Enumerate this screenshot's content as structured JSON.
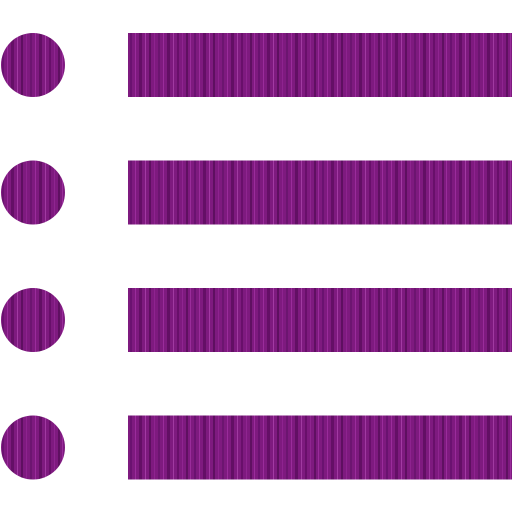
{
  "icon": {
    "name": "list-bullets-icon",
    "style": "purple wood-grain texture",
    "colors": {
      "base": "#7e1a7f",
      "dark": "#5e0f60",
      "light": "#9a2c9b",
      "background": "#ffffff"
    },
    "rows": [
      {
        "bullet": "bullet-dot",
        "bar": "list-line"
      },
      {
        "bullet": "bullet-dot",
        "bar": "list-line"
      },
      {
        "bullet": "bullet-dot",
        "bar": "list-line"
      },
      {
        "bullet": "bullet-dot",
        "bar": "list-line"
      }
    ]
  }
}
